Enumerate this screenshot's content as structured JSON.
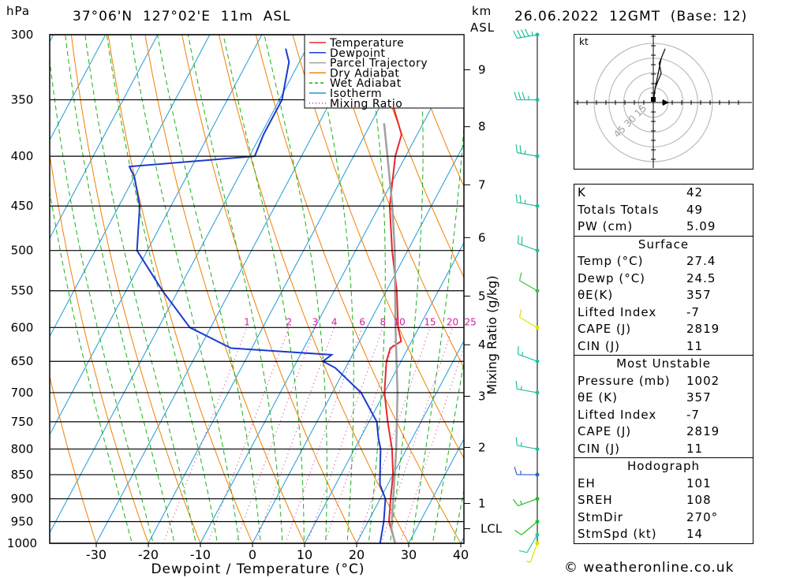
{
  "header": {
    "hpa_label": "hPa",
    "location": "37°06'N  127°02'E  11m  ASL",
    "km_label": "km",
    "asl_label": "ASL",
    "datetime": "26.06.2022  12GMT  (Base: 12)"
  },
  "chart_data": {
    "type": "line",
    "chart_kind": "skew-T log-P",
    "xlabel": "Dewpoint / Temperature (°C)",
    "ylabel": "hPa",
    "right_axis_label": "Mixing Ratio (g/kg)",
    "xlim": [
      -40,
      40
    ],
    "ylim": [
      1000,
      300
    ],
    "y_log": true,
    "pressure_levels": [
      300,
      350,
      400,
      450,
      500,
      550,
      600,
      650,
      700,
      750,
      800,
      850,
      900,
      950,
      1000
    ],
    "x_ticks": [
      -30,
      -20,
      -10,
      0,
      10,
      20,
      30,
      40
    ],
    "km_ticks": [
      {
        "label": "1",
        "p": 910
      },
      {
        "label": "2",
        "p": 797
      },
      {
        "label": "3",
        "p": 706
      },
      {
        "label": "4",
        "p": 625
      },
      {
        "label": "5",
        "p": 557
      },
      {
        "label": "6",
        "p": 485
      },
      {
        "label": "7",
        "p": 428
      },
      {
        "label": "8",
        "p": 373
      },
      {
        "label": "9",
        "p": 326
      },
      {
        "label": "LCL",
        "p": 966
      }
    ],
    "mixing_ratio_labels": [
      "1",
      "2",
      "3",
      "4",
      "6",
      "8",
      "10",
      "15",
      "20",
      "25"
    ],
    "mixing_ratio_values": [
      1,
      2,
      3,
      4,
      6,
      8,
      10,
      15,
      20,
      25
    ],
    "legend": {
      "placement": "top-center",
      "entries": [
        {
          "name": "Temperature",
          "color": "#e8282a",
          "style": "solid"
        },
        {
          "name": "Dewpoint",
          "color": "#1c3ad0",
          "style": "solid"
        },
        {
          "name": "Parcel Trajectory",
          "color": "#a0a0a0",
          "style": "solid"
        },
        {
          "name": "Dry Adiabat",
          "color": "#f08000",
          "style": "solid"
        },
        {
          "name": "Wet Adiabat",
          "color": "#18b018",
          "style": "dashed"
        },
        {
          "name": "Isotherm",
          "color": "#1f9ad6",
          "style": "solid"
        },
        {
          "name": "Mixing Ratio",
          "color": "#d0209a",
          "style": "dotted"
        }
      ]
    },
    "series": [
      {
        "name": "Temperature",
        "points": [
          [
            1000,
            27.4
          ],
          [
            950,
            24.0
          ],
          [
            900,
            22.0
          ],
          [
            850,
            20.0
          ],
          [
            800,
            17.2
          ],
          [
            750,
            13.6
          ],
          [
            700,
            10.0
          ],
          [
            650,
            7.2
          ],
          [
            630,
            6.6
          ],
          [
            620,
            8.0
          ],
          [
            600,
            6.0
          ],
          [
            550,
            2.0
          ],
          [
            500,
            -3.0
          ],
          [
            450,
            -8.0
          ],
          [
            400,
            -12.0
          ],
          [
            380,
            -13.0
          ],
          [
            350,
            -18.5
          ],
          [
            320,
            -24.0
          ],
          [
            310,
            -27.5
          ]
        ]
      },
      {
        "name": "Dewpoint",
        "points": [
          [
            1000,
            24.5
          ],
          [
            950,
            23.0
          ],
          [
            900,
            21.0
          ],
          [
            870,
            18.5
          ],
          [
            850,
            17.5
          ],
          [
            800,
            15.0
          ],
          [
            780,
            13.5
          ],
          [
            750,
            11.5
          ],
          [
            700,
            5.5
          ],
          [
            660,
            -2.0
          ],
          [
            650,
            -5.0
          ],
          [
            640,
            -4.0
          ],
          [
            630,
            -24.0
          ],
          [
            600,
            -34.0
          ],
          [
            550,
            -43.0
          ],
          [
            500,
            -52.0
          ],
          [
            450,
            -56.0
          ],
          [
            420,
            -60.0
          ],
          [
            410,
            -62.0
          ],
          [
            400,
            -39.0
          ],
          [
            380,
            -39.5
          ],
          [
            350,
            -39.5
          ],
          [
            320,
            -42.0
          ],
          [
            310,
            -44.0
          ]
        ]
      },
      {
        "name": "Parcel Trajectory",
        "points": [
          [
            1000,
            27.4
          ],
          [
            966,
            25.2
          ],
          [
            900,
            22.5
          ],
          [
            800,
            18.0
          ],
          [
            700,
            12.5
          ],
          [
            600,
            5.5
          ],
          [
            500,
            -2.5
          ],
          [
            450,
            -7.5
          ],
          [
            400,
            -13.5
          ],
          [
            370,
            -17.5
          ]
        ]
      }
    ],
    "wind_barbs": [
      {
        "p": 1000,
        "dir": 200,
        "kt": 5,
        "color": "#e0e000"
      },
      {
        "p": 980,
        "dir": 210,
        "kt": 10,
        "color": "#1fcfa0"
      },
      {
        "p": 950,
        "dir": 230,
        "kt": 10,
        "color": "#22c022"
      },
      {
        "p": 900,
        "dir": 250,
        "kt": 15,
        "color": "#22c022"
      },
      {
        "p": 850,
        "dir": 270,
        "kt": 15,
        "color": "#3060d0"
      },
      {
        "p": 800,
        "dir": 280,
        "kt": 15,
        "color": "#20c0a0"
      },
      {
        "p": 700,
        "dir": 280,
        "kt": 15,
        "color": "#20c0a0"
      },
      {
        "p": 650,
        "dir": 290,
        "kt": 15,
        "color": "#20c0a0"
      },
      {
        "p": 600,
        "dir": 300,
        "kt": 10,
        "color": "#e0e000"
      },
      {
        "p": 550,
        "dir": 300,
        "kt": 10,
        "color": "#40c040"
      },
      {
        "p": 500,
        "dir": 290,
        "kt": 20,
        "color": "#20c0a0"
      },
      {
        "p": 450,
        "dir": 280,
        "kt": 25,
        "color": "#20c0a0"
      },
      {
        "p": 400,
        "dir": 280,
        "kt": 25,
        "color": "#20c0a0"
      },
      {
        "p": 350,
        "dir": 270,
        "kt": 35,
        "color": "#20c0a0"
      },
      {
        "p": 300,
        "dir": 260,
        "kt": 45,
        "color": "#20c0a0"
      }
    ],
    "hodograph": {
      "unit_label": "kt",
      "ring_labels": [
        "15",
        "30",
        "45"
      ],
      "path_uv": [
        [
          0,
          0
        ],
        [
          2,
          6
        ],
        [
          8,
          12
        ],
        [
          6,
          16
        ],
        [
          12,
          22
        ],
        [
          8,
          18
        ],
        [
          4,
          10
        ],
        [
          1,
          4
        ]
      ]
    }
  },
  "indices": {
    "rows": [
      {
        "label": "K",
        "value": "42"
      },
      {
        "label": "Totals Totals",
        "value": "49"
      },
      {
        "label": "PW (cm)",
        "value": "5.09"
      }
    ]
  },
  "surface": {
    "title": "Surface",
    "rows": [
      {
        "label": "Temp (°C)",
        "value": "27.4"
      },
      {
        "label": "Dewp (°C)",
        "value": "24.5"
      },
      {
        "label": "θE(K)",
        "value": "357"
      },
      {
        "label": "Lifted Index",
        "value": "-7"
      },
      {
        "label": "CAPE (J)",
        "value": "2819"
      },
      {
        "label": "CIN (J)",
        "value": "11"
      }
    ]
  },
  "most_unstable": {
    "title": "Most Unstable",
    "rows": [
      {
        "label": "Pressure (mb)",
        "value": "1002"
      },
      {
        "label": "θE (K)",
        "value": "357"
      },
      {
        "label": "Lifted Index",
        "value": "-7"
      },
      {
        "label": "CAPE (J)",
        "value": "2819"
      },
      {
        "label": "CIN (J)",
        "value": "11"
      }
    ]
  },
  "hodograph_table": {
    "title": "Hodograph",
    "rows": [
      {
        "label": "EH",
        "value": "101"
      },
      {
        "label": "SREH",
        "value": "108"
      },
      {
        "label": "StmDir",
        "value": "270°"
      },
      {
        "label": "StmSpd (kt)",
        "value": "14"
      }
    ]
  },
  "footer": {
    "copyright": "© weatheronline.co.uk"
  }
}
